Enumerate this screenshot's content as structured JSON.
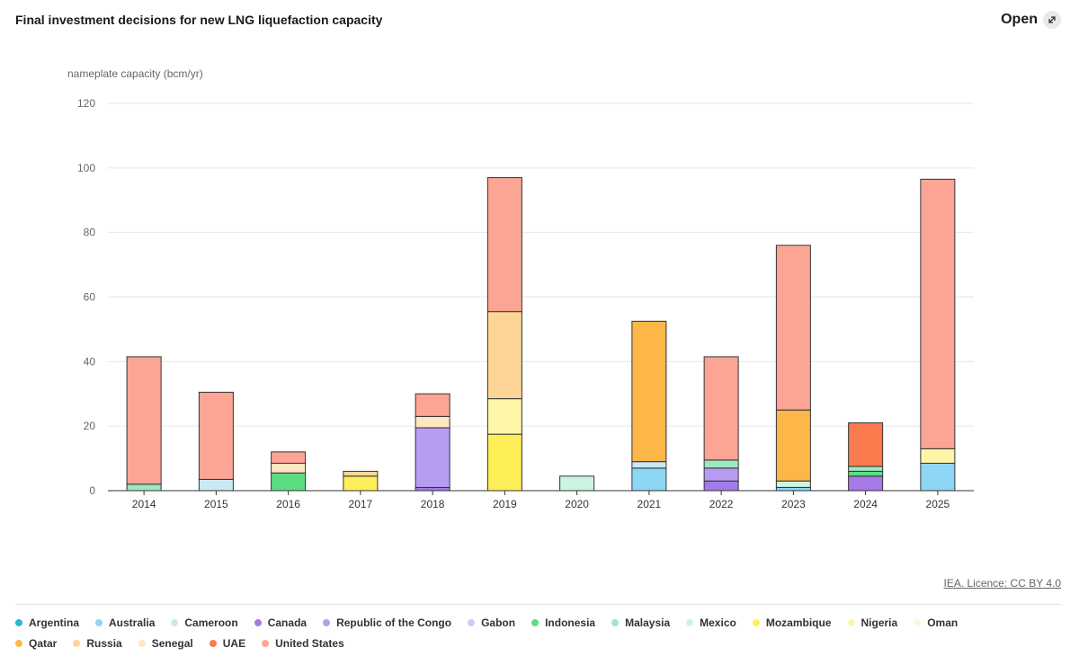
{
  "header": {
    "title": "Final investment decisions for new LNG liquefaction capacity",
    "open_label": "Open"
  },
  "source": "IEA. Licence: CC BY 4.0",
  "colors": {
    "Argentina": "#2cb5d8",
    "Australia": "#8dd6f4",
    "Cameroon": "#c9e9f5",
    "Canada": "#a57ae8",
    "Republic of the Congo": "#b79df2",
    "Gabon": "#d6c8f6",
    "Indonesia": "#5ddc82",
    "Malaysia": "#9be8c2",
    "Mexico": "#cdf4e2",
    "Mozambique": "#fdef58",
    "Nigeria": "#fdf6a8",
    "Oman": "#fbf8d9",
    "Qatar": "#fdb748",
    "Russia": "#fdd596",
    "Senegal": "#fde6c0",
    "UAE": "#fb7a4e",
    "United States": "#fda594"
  },
  "legend": [
    "Argentina",
    "Australia",
    "Cameroon",
    "Canada",
    "Republic of the Congo",
    "Gabon",
    "Indonesia",
    "Malaysia",
    "Mexico",
    "Mozambique",
    "Nigeria",
    "Oman",
    "Qatar",
    "Russia",
    "Senegal",
    "UAE",
    "United States"
  ],
  "chart_data": {
    "type": "bar",
    "stacked": true,
    "title": "Final investment decisions for new LNG liquefaction capacity",
    "ylabel": "nameplate capacity (bcm/yr)",
    "xlabel": "",
    "ylim": [
      0,
      120
    ],
    "yticks": [
      0,
      20,
      40,
      60,
      80,
      100,
      120
    ],
    "grid": true,
    "categories": [
      "2014",
      "2015",
      "2016",
      "2017",
      "2018",
      "2019",
      "2020",
      "2021",
      "2022",
      "2023",
      "2024",
      "2025"
    ],
    "series": [
      {
        "name": "Argentina",
        "values": [
          0,
          0,
          0,
          0,
          0,
          0,
          0,
          0,
          0,
          0,
          0,
          0
        ]
      },
      {
        "name": "Australia",
        "values": [
          0,
          0,
          0,
          0,
          0,
          0,
          0,
          7,
          0,
          1,
          0,
          8.5
        ]
      },
      {
        "name": "Cameroon",
        "values": [
          0,
          3.5,
          0,
          0,
          0,
          0,
          0,
          2,
          0,
          0,
          0,
          0
        ]
      },
      {
        "name": "Canada",
        "values": [
          0,
          0,
          0,
          0,
          1,
          0,
          0,
          0,
          3,
          0,
          4.5,
          0
        ]
      },
      {
        "name": "Republic of the Congo",
        "values": [
          0,
          0,
          0,
          0,
          18.5,
          0,
          0,
          0,
          4,
          0,
          0,
          0
        ]
      },
      {
        "name": "Gabon",
        "values": [
          0,
          0,
          0,
          0,
          0,
          0,
          0,
          0,
          0,
          0,
          0,
          0
        ]
      },
      {
        "name": "Indonesia",
        "values": [
          0,
          0,
          5.5,
          0,
          0,
          0,
          0,
          0,
          0,
          0,
          1.5,
          0
        ]
      },
      {
        "name": "Malaysia",
        "values": [
          2,
          0,
          0,
          0,
          0,
          0,
          0,
          0,
          2.5,
          0,
          1.5,
          0
        ]
      },
      {
        "name": "Mexico",
        "values": [
          0,
          0,
          0,
          0,
          0,
          0,
          4.5,
          0,
          0,
          2,
          0,
          0
        ]
      },
      {
        "name": "Mozambique",
        "values": [
          0,
          0,
          0,
          4.5,
          0,
          17.5,
          0,
          0,
          0,
          0,
          0,
          0
        ]
      },
      {
        "name": "Nigeria",
        "values": [
          0,
          0,
          0,
          0,
          0,
          11,
          0,
          0,
          0,
          0,
          0,
          4.5
        ]
      },
      {
        "name": "Oman",
        "values": [
          0,
          0,
          0,
          0,
          0,
          0,
          0,
          0,
          0,
          0,
          0,
          0
        ]
      },
      {
        "name": "Qatar",
        "values": [
          0,
          0,
          0,
          0,
          0,
          0,
          0,
          43.5,
          0,
          22,
          0,
          0
        ]
      },
      {
        "name": "Russia",
        "values": [
          0,
          0,
          0,
          1.5,
          0,
          27,
          0,
          0,
          0,
          0,
          0,
          0
        ]
      },
      {
        "name": "Senegal",
        "values": [
          0,
          0,
          3,
          0,
          3.5,
          0,
          0,
          0,
          0,
          0,
          0,
          0
        ]
      },
      {
        "name": "UAE",
        "values": [
          0,
          0,
          0,
          0,
          0,
          0,
          0,
          0,
          0,
          0,
          13.5,
          0
        ]
      },
      {
        "name": "United States",
        "values": [
          39.5,
          27,
          3.5,
          0,
          7,
          41.5,
          0,
          0,
          32,
          51,
          0,
          83.5
        ]
      }
    ]
  }
}
